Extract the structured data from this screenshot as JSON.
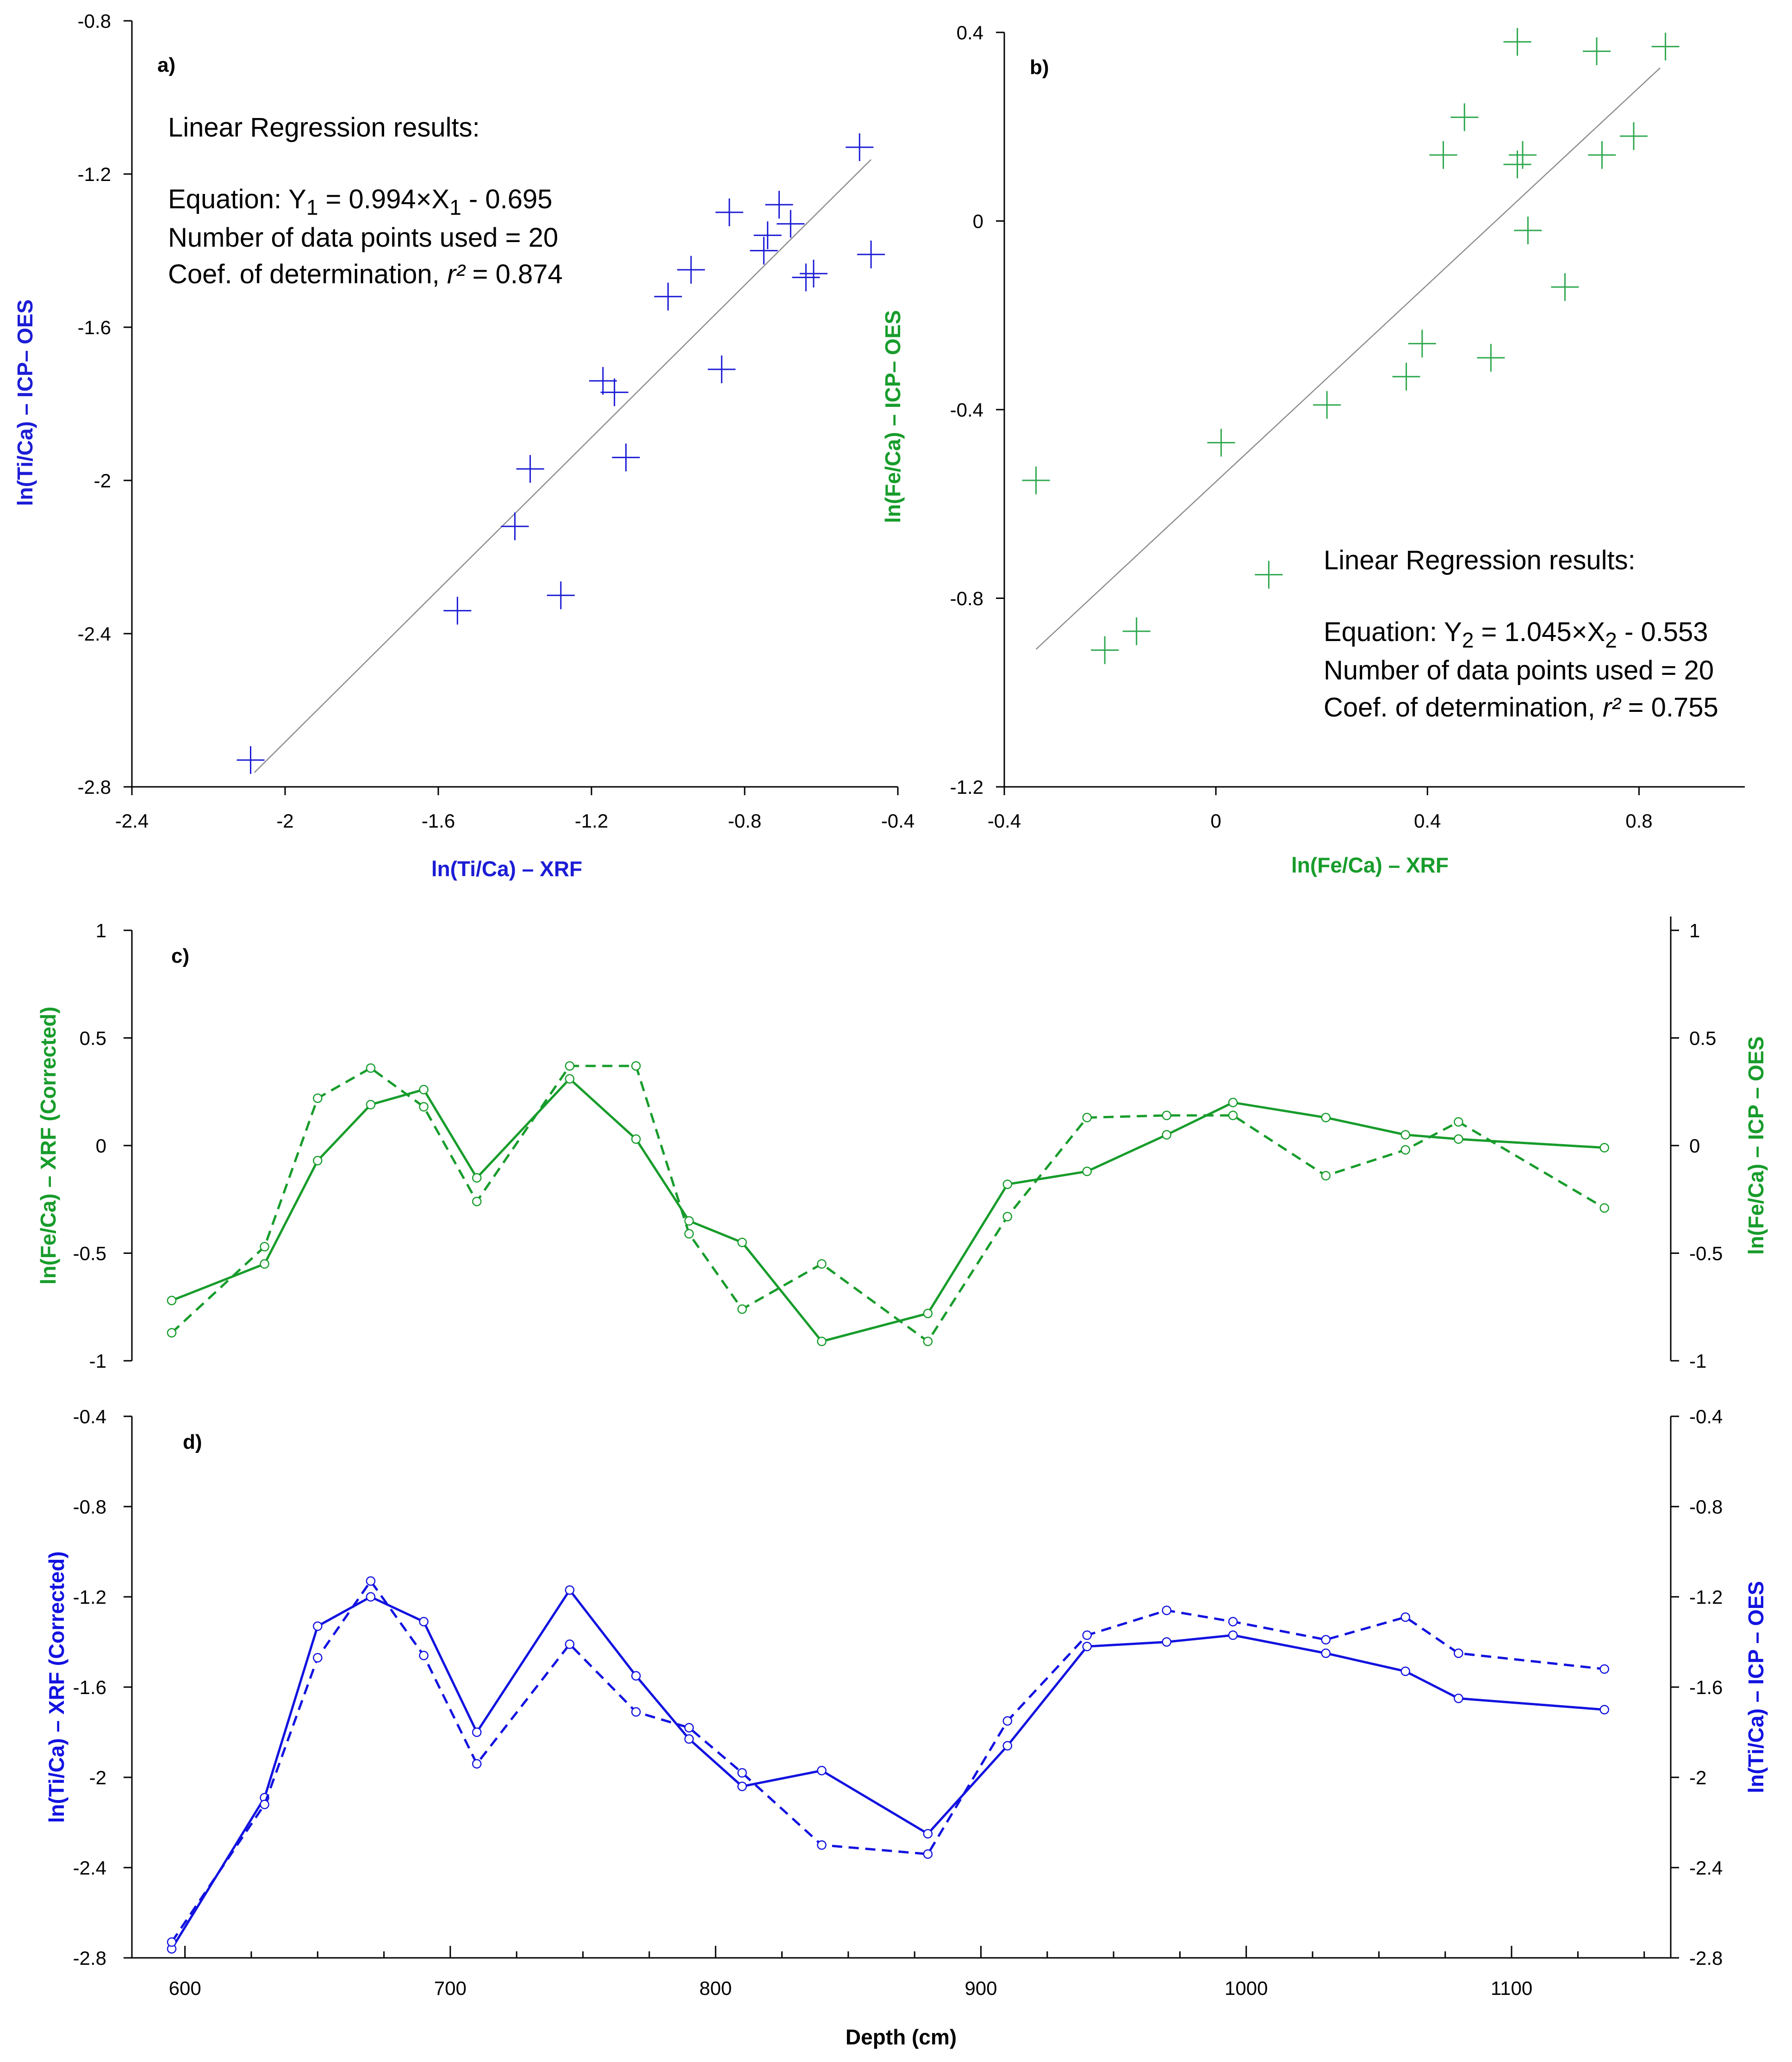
{
  "chart_data": [
    {
      "id": "a",
      "type": "scatter",
      "panel_label": "a)",
      "xlabel": "ln(Ti/Ca) – XRF",
      "ylabel": "ln(Ti/Ca) – ICP– OES",
      "xlim": [
        -2.4,
        -0.4
      ],
      "ylim": [
        -2.8,
        -0.8
      ],
      "xticks": [
        -2.4,
        -2,
        -1.6,
        -1.2,
        -0.8,
        -0.4
      ],
      "yticks": [
        -2.8,
        -2.4,
        -2,
        -1.6,
        -1.2,
        -0.8
      ],
      "color": "#1c1cd6",
      "marker": "cross",
      "points": {
        "x": [
          -2.09,
          -1.55,
          -1.4,
          -1.36,
          -1.28,
          -1.17,
          -1.14,
          -1.11,
          -1.0,
          -0.94,
          -0.86,
          -0.84,
          -0.75,
          -0.74,
          -0.71,
          -0.68,
          -0.64,
          -0.62,
          -0.5,
          -0.47
        ],
        "y": [
          -2.73,
          -2.34,
          -2.12,
          -1.97,
          -2.3,
          -1.74,
          -1.77,
          -1.94,
          -1.52,
          -1.45,
          -1.71,
          -1.3,
          -1.4,
          -1.36,
          -1.28,
          -1.33,
          -1.47,
          -1.46,
          -1.13,
          -1.41
        ]
      },
      "regression": {
        "slope": 0.994,
        "intercept": -0.695,
        "x_range": [
          -2.08,
          -0.47
        ]
      },
      "annotation": {
        "title": "Linear Regression results:",
        "eq_prefix": "Equation: Y",
        "eq_sub1": "1",
        "eq_mid": " = 0.994×X",
        "eq_sub2": "1",
        "eq_suffix": " - 0.695",
        "n_points": "Number of data points used = 20",
        "r2_prefix": "Coef. of determination, ",
        "r2_symbol": "r²",
        "r2_suffix": " = 0.874"
      }
    },
    {
      "id": "b",
      "type": "scatter",
      "panel_label": "b)",
      "xlabel": "ln(Fe/Ca) – XRF",
      "ylabel": "ln(Fe/Ca) – ICP– OES",
      "xlim": [
        -0.4,
        1.0
      ],
      "ylim": [
        -1.2,
        0.4
      ],
      "xticks": [
        -0.4,
        0,
        0.4,
        0.8
      ],
      "yticks": [
        -1.2,
        -0.8,
        -0.4,
        0,
        0.4
      ],
      "color": "#2ea84f",
      "marker": "cross",
      "points": {
        "x": [
          -0.34,
          -0.21,
          -0.15,
          0.01,
          0.1,
          0.21,
          0.36,
          0.39,
          0.43,
          0.47,
          0.52,
          0.57,
          0.57,
          0.58,
          0.59,
          0.66,
          0.72,
          0.73,
          0.79,
          0.85
        ],
        "y": [
          -0.55,
          -0.91,
          -0.87,
          -0.47,
          -0.75,
          -0.39,
          -0.33,
          -0.26,
          0.14,
          0.22,
          -0.29,
          0.38,
          0.12,
          0.14,
          -0.02,
          -0.14,
          0.36,
          0.14,
          0.18,
          0.37
        ]
      },
      "regression": {
        "slope": 1.045,
        "intercept": -0.553,
        "x_range": [
          -0.34,
          0.84
        ]
      },
      "annotation": {
        "title": "Linear Regression results:",
        "eq_prefix": "Equation: Y",
        "eq_sub1": "2",
        "eq_mid": " = 1.045×X",
        "eq_sub2": "2",
        "eq_suffix": " - 0.553",
        "n_points": "Number of data points used = 20",
        "r2_prefix": "Coef. of determination, ",
        "r2_symbol": "r²",
        "r2_suffix": " = 0.755"
      }
    },
    {
      "id": "c",
      "type": "line",
      "panel_label": "c)",
      "ylabel_left": "ln(Fe/Ca) – XRF (Corrected)",
      "ylabel_right": "ln(Fe/Ca) – ICP – OES",
      "xlim": [
        580,
        1160
      ],
      "ylim_left": [
        -1,
        1
      ],
      "ylim_right": [
        -1,
        1
      ],
      "yticks": [
        -1,
        -0.5,
        0,
        0.5,
        1
      ],
      "color": "#179c2b",
      "x": [
        595,
        630,
        650,
        670,
        690,
        710,
        745,
        770,
        790,
        810,
        840,
        880,
        910,
        940,
        970,
        995,
        1030,
        1060,
        1080,
        1135
      ],
      "series": [
        {
          "name": "XRF (corrected)",
          "style": "solid",
          "axis": "left",
          "values": [
            -0.72,
            -0.55,
            -0.07,
            0.19,
            0.26,
            -0.15,
            0.31,
            0.03,
            -0.35,
            -0.45,
            -0.91,
            -0.78,
            -0.18,
            -0.12,
            0.05,
            0.2,
            0.13,
            0.05,
            0.03,
            -0.01
          ]
        },
        {
          "name": "ICP-OES",
          "style": "dashed",
          "axis": "right",
          "values": [
            -0.87,
            -0.47,
            0.22,
            0.36,
            0.18,
            -0.26,
            0.37,
            0.37,
            -0.41,
            -0.76,
            -0.55,
            -0.91,
            -0.33,
            0.13,
            0.14,
            0.14,
            -0.14,
            -0.02,
            0.11,
            -0.29
          ]
        }
      ]
    },
    {
      "id": "d",
      "type": "line",
      "panel_label": "d)",
      "xlabel": "Depth (cm)",
      "ylabel_left": "ln(Ti/Ca) – XRF (Corrected)",
      "ylabel_right": "ln(Ti/Ca) – ICP – OES",
      "xlim": [
        580,
        1160
      ],
      "xticks": [
        600,
        700,
        800,
        900,
        1000,
        1100
      ],
      "ylim_left": [
        -2.8,
        -0.4
      ],
      "ylim_right": [
        -2.8,
        -0.4
      ],
      "yticks": [
        -2.8,
        -2.4,
        -2,
        -1.6,
        -1.2,
        -0.8,
        -0.4
      ],
      "color": "#1212e0",
      "x": [
        595,
        630,
        650,
        670,
        690,
        710,
        745,
        770,
        790,
        810,
        840,
        880,
        910,
        940,
        970,
        995,
        1030,
        1060,
        1080,
        1135
      ],
      "series": [
        {
          "name": "XRF (corrected)",
          "style": "solid",
          "axis": "left",
          "values": [
            -2.76,
            -2.09,
            -1.33,
            -1.2,
            -1.31,
            -1.8,
            -1.17,
            -1.55,
            -1.83,
            -2.04,
            -1.97,
            -2.25,
            -1.86,
            -1.42,
            -1.4,
            -1.37,
            -1.45,
            -1.53,
            -1.65,
            -1.7
          ]
        },
        {
          "name": "ICP-OES",
          "style": "dashed",
          "axis": "right",
          "values": [
            -2.73,
            -2.12,
            -1.47,
            -1.13,
            -1.46,
            -1.94,
            -1.41,
            -1.71,
            -1.78,
            -1.98,
            -2.3,
            -2.34,
            -1.75,
            -1.37,
            -1.26,
            -1.31,
            -1.39,
            -1.29,
            -1.45,
            -1.52
          ]
        }
      ]
    }
  ]
}
